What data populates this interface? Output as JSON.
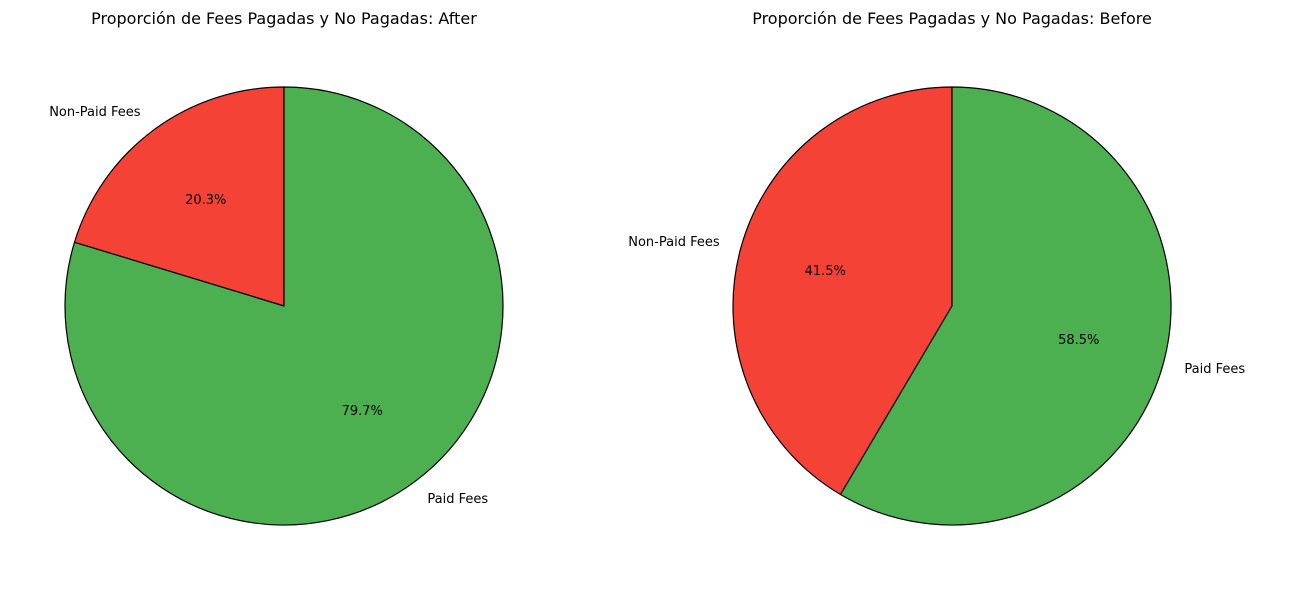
{
  "chart_data": [
    {
      "type": "pie",
      "title": "Proporción de Fees Pagadas y No Pagadas: After",
      "start_angle_deg": 90,
      "direction": "counterclockwise",
      "slices": [
        {
          "label": "Non-Paid Fees",
          "value": 20.3,
          "pct_label": "20.3%",
          "color": "#f44336"
        },
        {
          "label": "Paid Fees",
          "value": 79.7,
          "pct_label": "79.7%",
          "color": "#4caf50"
        }
      ]
    },
    {
      "type": "pie",
      "title": "Proporción de Fees Pagadas y No Pagadas: Before",
      "start_angle_deg": 90,
      "direction": "counterclockwise",
      "slices": [
        {
          "label": "Non-Paid Fees",
          "value": 41.5,
          "pct_label": "41.5%",
          "color": "#f44336"
        },
        {
          "label": "Paid Fees",
          "value": 58.5,
          "pct_label": "58.5%",
          "color": "#4caf50"
        }
      ]
    }
  ]
}
